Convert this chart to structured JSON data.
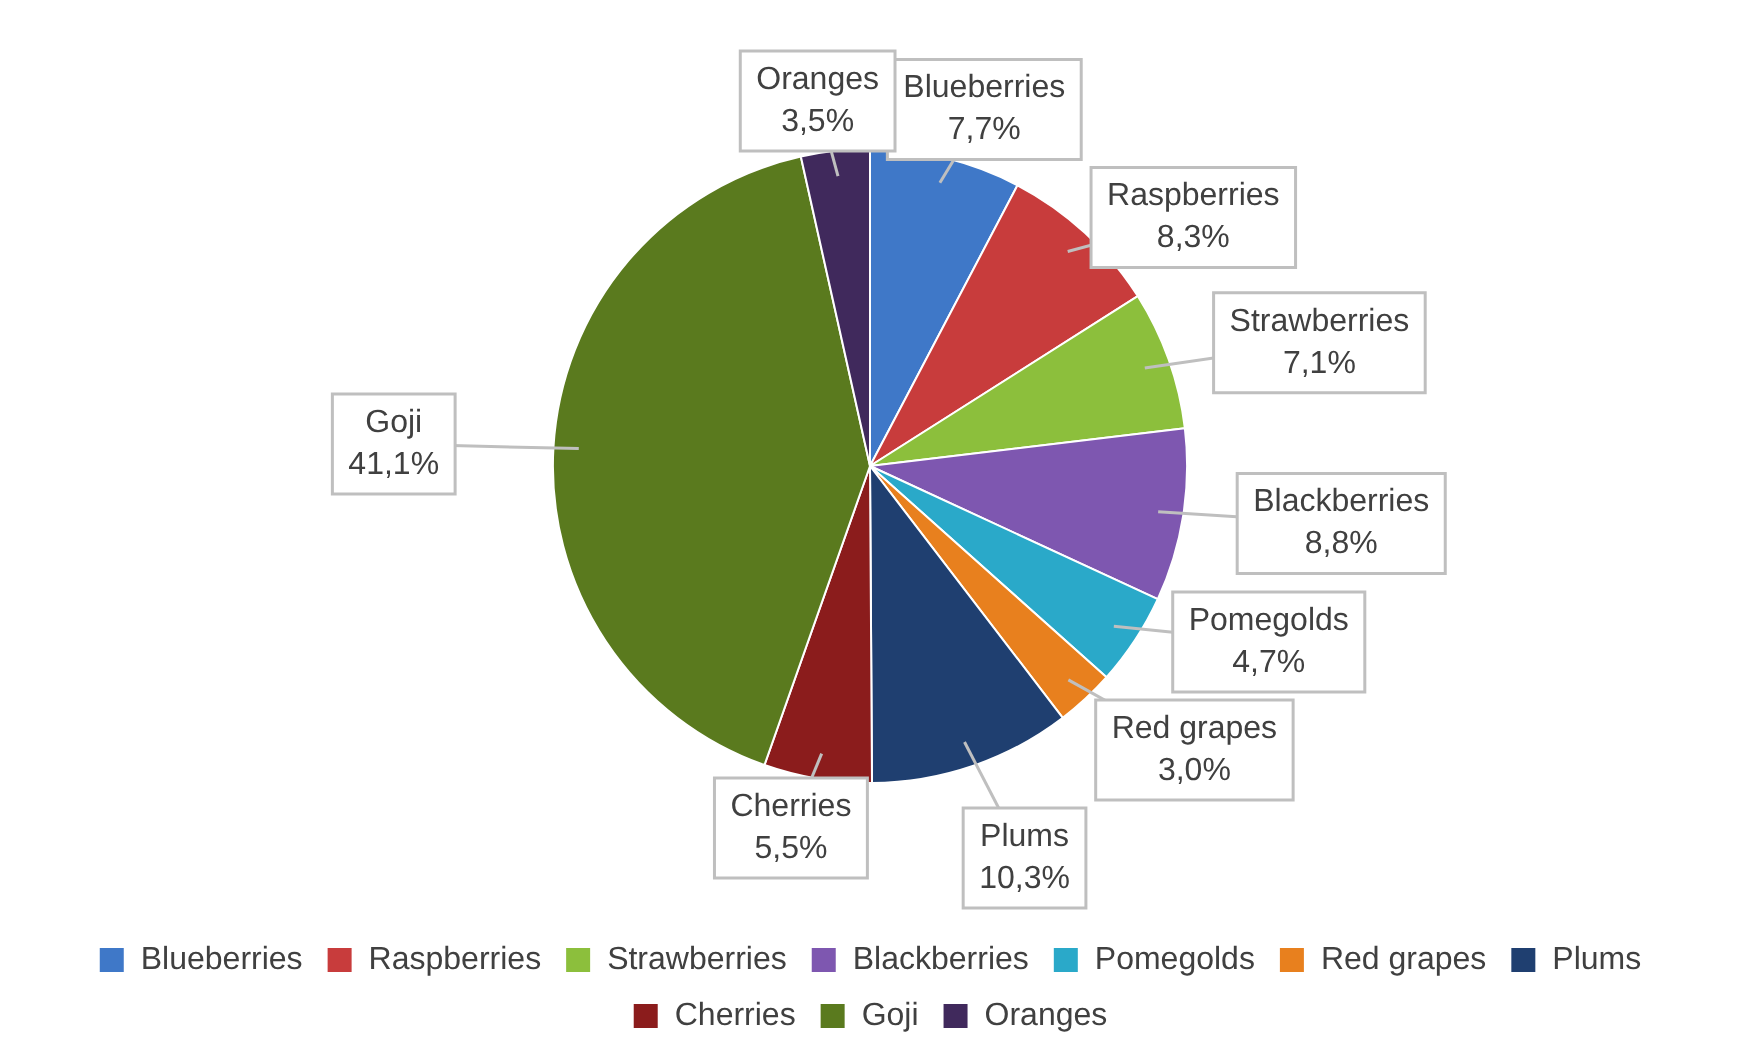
{
  "chart_data": {
    "type": "pie",
    "categories": [
      "Blueberries",
      "Raspberries",
      "Strawberries",
      "Blackberries",
      "Pomegolds",
      "Red grapes",
      "Plums",
      "Cherries",
      "Goji",
      "Oranges"
    ],
    "values": [
      7.7,
      8.3,
      7.1,
      8.8,
      4.7,
      3.0,
      10.3,
      5.5,
      41.1,
      3.5
    ],
    "value_labels": [
      "7,7%",
      "8,3%",
      "7,1%",
      "8,8%",
      "4,7%",
      "3,0%",
      "10,3%",
      "5,5%",
      "41,1%",
      "3,5%"
    ],
    "colors": [
      "#3f78c8",
      "#c83c3c",
      "#8cbf3c",
      "#7e57b0",
      "#2aa9c9",
      "#e8801e",
      "#1f3f70",
      "#8b1c1c",
      "#5a7a1e",
      "#40295c"
    ],
    "legend": "bottom"
  }
}
